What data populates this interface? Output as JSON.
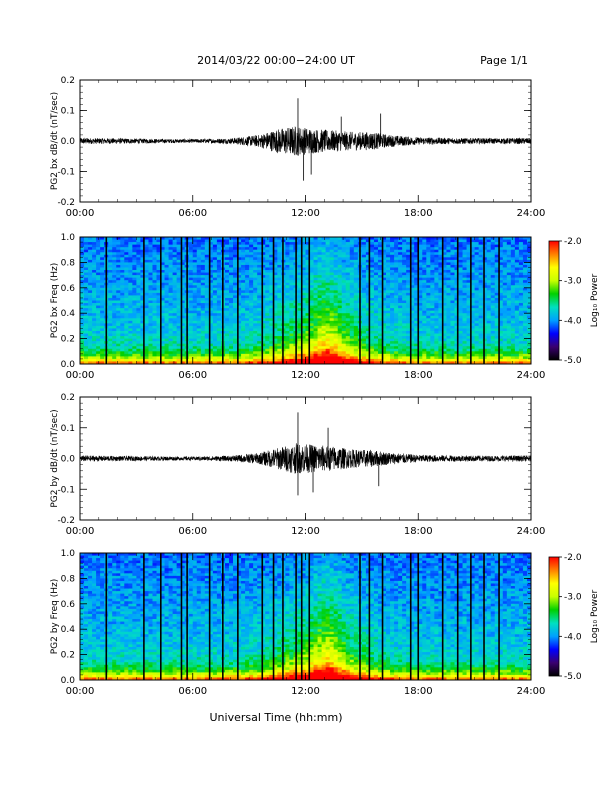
{
  "header": {
    "title": "2014/03/22  00:00−24:00 UT",
    "page": "Page 1/1"
  },
  "footer": {
    "xlabel": "Universal Time (hh:mm)"
  },
  "colors": {
    "colormap": [
      "#000000",
      "#3a0070",
      "#0000ff",
      "#00a0ff",
      "#00e0c0",
      "#00d000",
      "#c8ff00",
      "#ffff00",
      "#ff8000",
      "#ff0000"
    ]
  },
  "chart_data": [
    {
      "type": "line",
      "ylabel": "PG2 bx dB/dt (nT/sec)",
      "xlim": [
        0,
        24
      ],
      "ylim": [
        -0.2,
        0.2
      ],
      "x_ticks": [
        "00:00",
        "06:00",
        "12:00",
        "18:00",
        "24:00"
      ],
      "y_ticks": [
        "0.2",
        "0.1",
        "0.0",
        "-0.1",
        "-0.2"
      ],
      "envelope": {
        "hours": [
          0,
          2,
          4,
          6,
          8,
          9.5,
          10.5,
          11.5,
          12.5,
          13.5,
          14.5,
          15.5,
          16.5,
          18,
          20,
          22,
          24
        ],
        "amplitude": [
          0.01,
          0.009,
          0.007,
          0.006,
          0.009,
          0.02,
          0.04,
          0.05,
          0.04,
          0.035,
          0.03,
          0.03,
          0.02,
          0.012,
          0.01,
          0.009,
          0.01
        ]
      },
      "peaks": [
        [
          11.6,
          0.14
        ],
        [
          11.9,
          -0.13
        ],
        [
          16.0,
          0.09
        ],
        [
          13.9,
          0.08
        ],
        [
          12.3,
          -0.11
        ]
      ]
    },
    {
      "type": "heatmap",
      "ylabel": "PG2 bx Freq (Hz)",
      "xlim": [
        0,
        24
      ],
      "ylim": [
        0,
        1.0
      ],
      "x_ticks": [
        "00:00",
        "06:00",
        "12:00",
        "18:00",
        "24:00"
      ],
      "y_ticks": [
        "1.0",
        "0.8",
        "0.6",
        "0.4",
        "0.2",
        "0.0"
      ],
      "colorbar": {
        "label": "Log₁₀ Power",
        "range": [
          -5.0,
          -2.0
        ],
        "ticks": [
          "-2.0",
          "-3.0",
          "-4.0",
          "-5.0"
        ]
      },
      "gap_lines_hours": [
        1.4,
        3.4,
        4.3,
        5.4,
        5.7,
        6.9,
        7.6,
        8.4,
        9.7,
        10.3,
        10.8,
        11.5,
        11.8,
        12.2,
        14.9,
        15.4,
        16.1,
        17.6,
        18.0,
        19.3,
        20.1,
        20.8,
        21.5,
        22.3
      ]
    },
    {
      "type": "line",
      "ylabel": "PG2 by dB/dt (nT/sec)",
      "xlim": [
        0,
        24
      ],
      "ylim": [
        -0.2,
        0.2
      ],
      "x_ticks": [
        "00:00",
        "06:00",
        "12:00",
        "18:00",
        "24:00"
      ],
      "y_ticks": [
        "0.2",
        "0.1",
        "0.0",
        "-0.1",
        "-0.2"
      ],
      "envelope": {
        "hours": [
          0,
          2,
          4,
          6,
          8,
          9.5,
          10.5,
          11.5,
          12.5,
          13.5,
          14.5,
          15.5,
          16.5,
          18,
          20,
          22,
          24
        ],
        "amplitude": [
          0.01,
          0.008,
          0.007,
          0.006,
          0.009,
          0.018,
          0.035,
          0.05,
          0.045,
          0.04,
          0.03,
          0.028,
          0.02,
          0.012,
          0.01,
          0.009,
          0.01
        ]
      },
      "peaks": [
        [
          11.6,
          0.15
        ],
        [
          11.6,
          -0.12
        ],
        [
          13.2,
          0.1
        ],
        [
          12.4,
          -0.11
        ],
        [
          15.9,
          -0.09
        ]
      ]
    },
    {
      "type": "heatmap",
      "ylabel": "PG2 by Freq (Hz)",
      "xlim": [
        0,
        24
      ],
      "ylim": [
        0,
        1.0
      ],
      "x_ticks": [
        "00:00",
        "06:00",
        "12:00",
        "18:00",
        "24:00"
      ],
      "y_ticks": [
        "1.0",
        "0.8",
        "0.6",
        "0.4",
        "0.2",
        "0.0"
      ],
      "colorbar": {
        "label": "Log₁₀ Power",
        "range": [
          -5.0,
          -2.0
        ],
        "ticks": [
          "-2.0",
          "-3.0",
          "-4.0",
          "-5.0"
        ]
      },
      "gap_lines_hours": [
        1.4,
        3.4,
        4.3,
        5.4,
        5.7,
        6.9,
        7.6,
        8.4,
        9.7,
        10.3,
        10.8,
        11.5,
        11.8,
        12.2,
        14.9,
        15.4,
        16.1,
        17.6,
        18.0,
        19.3,
        20.1,
        20.8,
        21.5,
        22.3
      ]
    }
  ]
}
